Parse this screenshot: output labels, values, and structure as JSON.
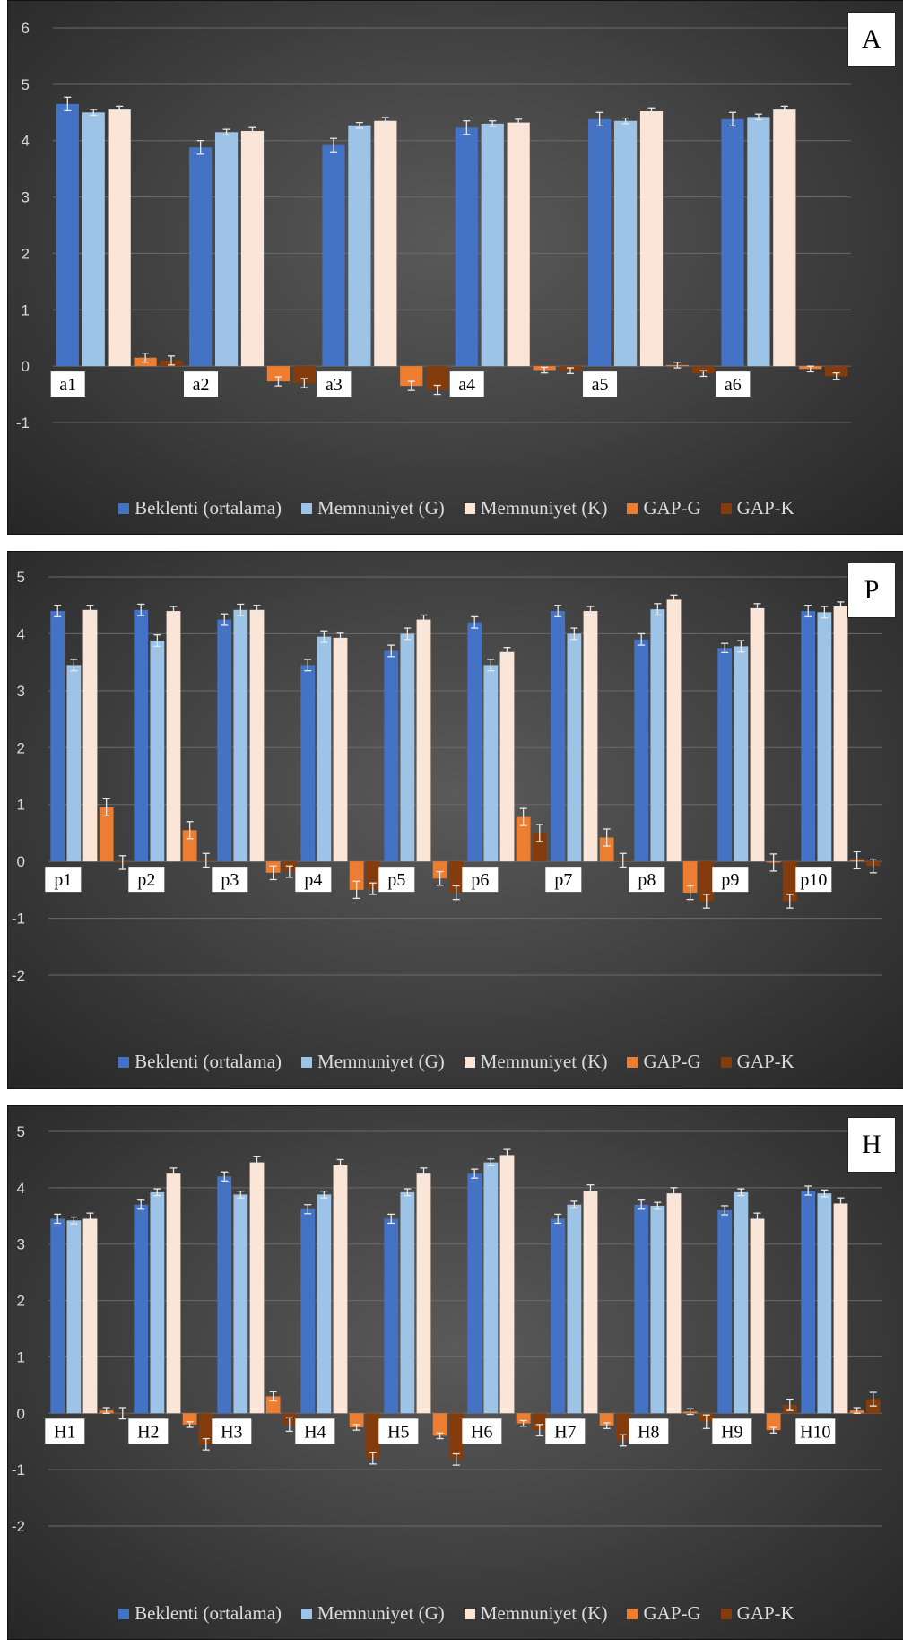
{
  "colors": {
    "series": [
      "#4472c4",
      "#9dc3e6",
      "#fbe5d6",
      "#ed7d31",
      "#843c0c"
    ],
    "grid": "#6b6b6b",
    "tick": "#d9d9d9",
    "error": "#e8e8e8"
  },
  "chart_data": [
    {
      "type": "bar",
      "badge": "A",
      "categories": [
        "a1",
        "a2",
        "a3",
        "a4",
        "a5",
        "a6"
      ],
      "ylim": [
        -1,
        6
      ],
      "yticks": [
        "-1",
        "0",
        "1",
        "2",
        "3",
        "4",
        "5",
        "6"
      ],
      "grid": true,
      "legend_position": "bottom",
      "error_bars": true,
      "series": [
        {
          "name": "Beklenti (ortalama)",
          "values": [
            4.65,
            3.88,
            3.92,
            4.23,
            4.38,
            4.38
          ],
          "errors": [
            0.12,
            0.12,
            0.12,
            0.12,
            0.12,
            0.12
          ]
        },
        {
          "name": "Memnuniyet (G)",
          "values": [
            4.5,
            4.15,
            4.27,
            4.3,
            4.35,
            4.42
          ],
          "errors": [
            0.05,
            0.05,
            0.05,
            0.05,
            0.05,
            0.05
          ]
        },
        {
          "name": "Memnuniyet (K)",
          "values": [
            4.55,
            4.17,
            4.35,
            4.32,
            4.52,
            4.55
          ],
          "errors": [
            0.06,
            0.06,
            0.06,
            0.06,
            0.06,
            0.06
          ]
        },
        {
          "name": "GAP-G",
          "values": [
            0.15,
            -0.27,
            -0.35,
            -0.07,
            0.02,
            -0.05
          ],
          "errors": [
            0.08,
            0.08,
            0.08,
            0.05,
            0.05,
            0.05
          ]
        },
        {
          "name": "GAP-K",
          "values": [
            0.1,
            -0.3,
            -0.42,
            -0.08,
            -0.13,
            -0.18
          ],
          "errors": [
            0.08,
            0.08,
            0.08,
            0.05,
            0.05,
            0.06
          ]
        }
      ]
    },
    {
      "type": "bar",
      "badge": "P",
      "categories": [
        "p1",
        "p2",
        "p3",
        "p4",
        "p5",
        "p6",
        "p7",
        "p8",
        "p9",
        "p10"
      ],
      "ylim": [
        -2,
        5
      ],
      "yticks": [
        "-2",
        "-1",
        "0",
        "1",
        "2",
        "3",
        "4",
        "5"
      ],
      "grid": true,
      "legend_position": "bottom",
      "error_bars": true,
      "series": [
        {
          "name": "Beklenti (ortalama)",
          "values": [
            4.4,
            4.42,
            4.25,
            3.45,
            3.7,
            4.2,
            4.4,
            3.9,
            3.75,
            4.4
          ],
          "errors": [
            0.1,
            0.1,
            0.1,
            0.1,
            0.1,
            0.1,
            0.1,
            0.1,
            0.08,
            0.1
          ]
        },
        {
          "name": "Memnuniyet (G)",
          "values": [
            3.45,
            3.88,
            4.42,
            3.95,
            4.0,
            3.45,
            4.0,
            4.43,
            3.78,
            4.38
          ],
          "errors": [
            0.1,
            0.1,
            0.1,
            0.1,
            0.1,
            0.1,
            0.1,
            0.1,
            0.1,
            0.1
          ]
        },
        {
          "name": "Memnuniyet (K)",
          "values": [
            4.42,
            4.4,
            4.42,
            3.93,
            4.25,
            3.68,
            4.4,
            4.6,
            4.45,
            4.48
          ],
          "errors": [
            0.08,
            0.08,
            0.08,
            0.08,
            0.08,
            0.08,
            0.08,
            0.08,
            0.08,
            0.08
          ]
        },
        {
          "name": "GAP-G",
          "values": [
            0.95,
            0.55,
            -0.2,
            -0.5,
            -0.3,
            0.78,
            0.42,
            -0.55,
            -0.02,
            0.02
          ],
          "errors": [
            0.15,
            0.15,
            0.12,
            0.15,
            0.12,
            0.15,
            0.15,
            0.12,
            0.15,
            0.15
          ]
        },
        {
          "name": "GAP-K",
          "values": [
            -0.02,
            0.02,
            -0.18,
            -0.48,
            -0.55,
            0.5,
            0.02,
            -0.7,
            -0.7,
            -0.08
          ],
          "errors": [
            0.12,
            0.12,
            0.1,
            0.1,
            0.12,
            0.15,
            0.12,
            0.12,
            0.12,
            0.12
          ]
        }
      ]
    },
    {
      "type": "bar",
      "badge": "H",
      "categories": [
        "H1",
        "H2",
        "H3",
        "H4",
        "H5",
        "H6",
        "H7",
        "H8",
        "H9",
        "H10"
      ],
      "ylim": [
        -2,
        5
      ],
      "yticks": [
        "-2",
        "-1",
        "0",
        "1",
        "2",
        "3",
        "4",
        "5"
      ],
      "grid": true,
      "legend_position": "bottom",
      "error_bars": true,
      "series": [
        {
          "name": "Beklenti (ortalama)",
          "values": [
            3.45,
            3.7,
            4.2,
            3.62,
            3.45,
            4.25,
            3.45,
            3.7,
            3.6,
            3.95
          ],
          "errors": [
            0.08,
            0.08,
            0.08,
            0.08,
            0.08,
            0.08,
            0.08,
            0.08,
            0.08,
            0.08
          ]
        },
        {
          "name": "Memnuniyet (G)",
          "values": [
            3.42,
            3.92,
            3.88,
            3.88,
            3.92,
            4.45,
            3.7,
            3.68,
            3.92,
            3.9
          ],
          "errors": [
            0.06,
            0.06,
            0.06,
            0.06,
            0.06,
            0.06,
            0.06,
            0.06,
            0.06,
            0.06
          ]
        },
        {
          "name": "Memnuniyet (K)",
          "values": [
            3.45,
            4.25,
            4.45,
            4.4,
            4.25,
            4.58,
            3.95,
            3.9,
            3.45,
            3.72
          ],
          "errors": [
            0.1,
            0.1,
            0.1,
            0.1,
            0.1,
            0.1,
            0.1,
            0.1,
            0.1,
            0.1
          ]
        },
        {
          "name": "GAP-G",
          "values": [
            0.05,
            -0.2,
            0.3,
            -0.25,
            -0.4,
            -0.18,
            -0.22,
            0.03,
            -0.3,
            0.05
          ],
          "errors": [
            0.05,
            0.05,
            0.08,
            0.05,
            0.05,
            0.05,
            0.05,
            0.05,
            0.05,
            0.05
          ]
        },
        {
          "name": "GAP-K",
          "values": [
            0.0,
            -0.55,
            -0.2,
            -0.8,
            -0.82,
            -0.3,
            -0.48,
            -0.15,
            0.15,
            0.25
          ],
          "errors": [
            0.1,
            0.1,
            0.12,
            0.1,
            0.1,
            0.1,
            0.1,
            0.12,
            0.1,
            0.12
          ]
        }
      ]
    }
  ]
}
